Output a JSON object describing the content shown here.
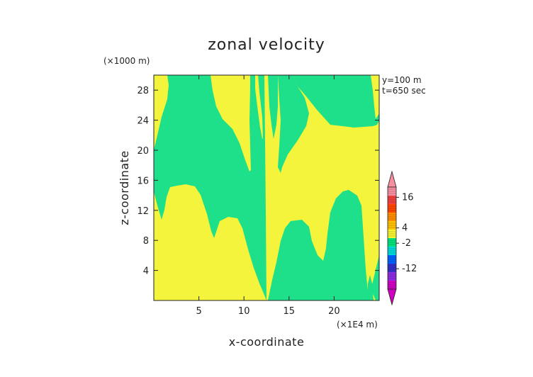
{
  "chart_data": {
    "type": "contour",
    "title": "zonal velocity",
    "xlabel": "x-coordinate",
    "ylabel": "z-coordinate",
    "x_unit": "(×1E4 m)",
    "y_unit": "(×1000 m)",
    "xlim": [
      0,
      25
    ],
    "ylim": [
      0,
      30
    ],
    "x_ticks": [
      "5",
      "10",
      "15",
      "20"
    ],
    "y_ticks": [
      "4",
      "8",
      "12",
      "16",
      "20",
      "24",
      "28"
    ],
    "annotations": [
      "y=100 m",
      "t=650 sec"
    ],
    "colorbar": {
      "range": [
        -20,
        20
      ],
      "labels": [
        "16",
        "4",
        "-2",
        "-12"
      ],
      "colors": [
        "#f78fa0",
        "#f04040",
        "#ff4500",
        "#ff8c00",
        "#ffc000",
        "#f4f430",
        "#00e27a",
        "#00d8d8",
        "#0060ff",
        "#3030c8",
        "#8a2be2",
        "#d000c0"
      ]
    },
    "regions": [
      {
        "name": "u between -2 and 0",
        "color": "#1ee08a"
      },
      {
        "name": "u between 0 and 4",
        "color": "#f4f43c"
      }
    ]
  }
}
